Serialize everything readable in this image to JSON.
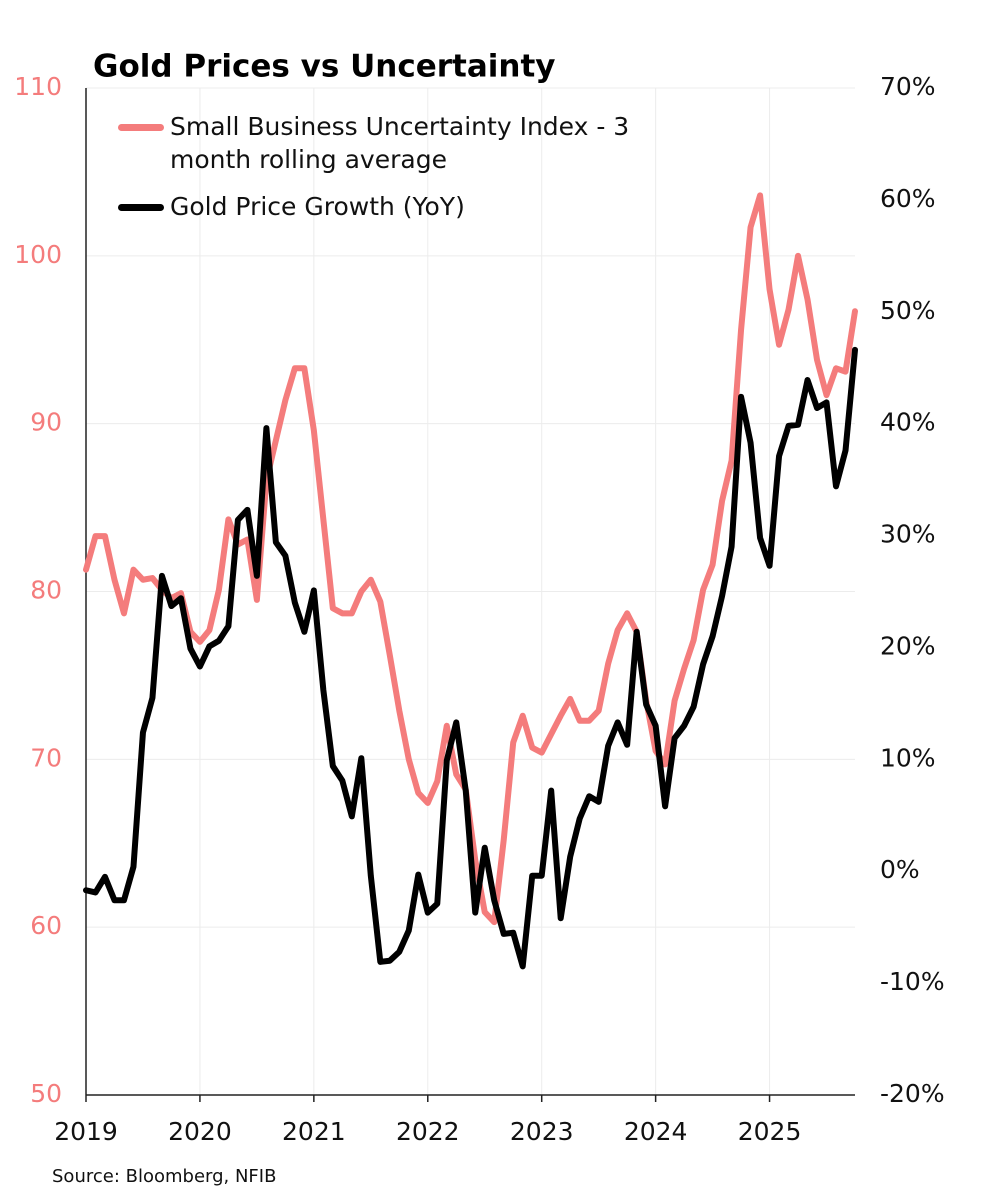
{
  "chart_data": {
    "type": "line",
    "title": "Gold Prices vs Uncertainty",
    "source": "Source: Bloomberg, NFIB",
    "x": [
      2019,
      2019.0833,
      2019.1667,
      2019.25,
      2019.3333,
      2019.4167,
      2019.5,
      2019.5833,
      2019.6667,
      2019.75,
      2019.8333,
      2019.9167,
      2020,
      2020.0833,
      2020.1667,
      2020.25,
      2020.3333,
      2020.4167,
      2020.5,
      2020.5833,
      2020.6667,
      2020.75,
      2020.8333,
      2020.9167,
      2021,
      2021.0833,
      2021.1667,
      2021.25,
      2021.3333,
      2021.4167,
      2021.5,
      2021.5833,
      2021.6667,
      2021.75,
      2021.8333,
      2021.9167,
      2022,
      2022.0833,
      2022.1667,
      2022.25,
      2022.3333,
      2022.4167,
      2022.5,
      2022.5833,
      2022.6667,
      2022.75,
      2022.8333,
      2022.9167,
      2023,
      2023.0833,
      2023.1667,
      2023.25,
      2023.3333,
      2023.4167,
      2023.5,
      2023.5833,
      2023.6667,
      2023.75,
      2023.8333,
      2023.9167,
      2024,
      2024.0833,
      2024.1667,
      2024.25,
      2024.3333,
      2024.4167,
      2024.5,
      2024.5833,
      2024.6667,
      2024.75,
      2024.8333,
      2024.9167,
      2025,
      2025.0833,
      2025.1667,
      2025.25,
      2025.3333,
      2025.4167,
      2025.5,
      2025.5833,
      2025.6667,
      2025.75
    ],
    "series": [
      {
        "name": "Small Business Uncertainty Index - 3 month rolling average",
        "color": "#f47c7c",
        "axis": "y",
        "values": [
          81.3,
          83.3,
          83.3,
          80.7,
          78.7,
          81.3,
          80.7,
          80.8,
          80.1,
          79.6,
          79.9,
          77.6,
          77.0,
          77.7,
          80.1,
          84.3,
          82.8,
          83.1,
          79.5,
          86.6,
          89.0,
          91.4,
          93.3,
          93.3,
          89.6,
          84.3,
          79.0,
          78.7,
          78.7,
          80.0,
          80.7,
          79.4,
          76.2,
          72.9,
          70.0,
          68.0,
          67.4,
          68.7,
          72.0,
          69.1,
          68.2,
          64.0,
          60.9,
          60.3,
          65.2,
          71.0,
          72.6,
          70.7,
          70.4,
          71.5,
          72.6,
          73.6,
          72.3,
          72.3,
          72.9,
          75.7,
          77.7,
          78.7,
          77.6,
          73.5,
          70.5,
          69.7,
          73.5,
          75.4,
          77.1,
          80.1,
          81.6,
          85.4,
          87.8,
          95.6,
          101.7,
          103.6,
          98.0,
          94.7,
          96.8,
          100.0,
          97.4,
          93.8,
          91.7,
          93.3,
          93.1,
          96.7
        ]
      },
      {
        "name": "Gold Price Growth (YoY)",
        "color": "#000000",
        "axis": "y2",
        "values": [
          -1.7,
          -1.9,
          -0.5,
          -2.6,
          -2.6,
          0.4,
          12.4,
          15.5,
          26.4,
          23.7,
          24.4,
          19.9,
          18.3,
          20.1,
          20.6,
          21.9,
          31.4,
          32.3,
          26.4,
          39.6,
          29.4,
          28.2,
          24.0,
          21.4,
          25.1,
          16.2,
          9.4,
          8.1,
          4.9,
          10.1,
          -0.4,
          -8.1,
          -8.0,
          -7.2,
          -5.3,
          -0.3,
          -3.7,
          -2.9,
          9.9,
          13.3,
          7.2,
          -3.7,
          2.1,
          -2.6,
          -5.6,
          -5.5,
          -8.5,
          -0.4,
          -0.4,
          7.2,
          -4.2,
          1.3,
          4.7,
          6.7,
          6.2,
          11.2,
          13.3,
          11.3,
          21.4,
          14.9,
          13.0,
          5.8,
          11.9,
          13.0,
          14.7,
          18.5,
          21.0,
          24.6,
          29.0,
          42.4,
          38.3,
          29.8,
          27.3,
          37.1,
          39.8,
          39.9,
          43.9,
          41.4,
          41.9,
          34.4,
          37.6,
          46.6
        ]
      }
    ],
    "xlim": [
      2019,
      2025.75
    ],
    "xticks": [
      2019,
      2020,
      2021,
      2022,
      2023,
      2024,
      2025
    ],
    "ylim": [
      50,
      110
    ],
    "yticks": [
      50,
      60,
      70,
      80,
      90,
      100,
      110
    ],
    "ycolor": "#f47c7c",
    "y2lim": [
      -20,
      70
    ],
    "y2ticks": [
      {
        "value": -20,
        "label": "-20%"
      },
      {
        "value": -10,
        "label": "-10%"
      },
      {
        "value": 0,
        "label": "0%"
      },
      {
        "value": 10,
        "label": "10%"
      },
      {
        "value": 20,
        "label": "20%"
      },
      {
        "value": 30,
        "label": "30%"
      },
      {
        "value": 40,
        "label": "40%"
      },
      {
        "value": 50,
        "label": "50%"
      },
      {
        "value": 60,
        "label": "60%"
      },
      {
        "value": 70,
        "label": "70%"
      }
    ],
    "grid": true,
    "legend": "upper left"
  }
}
